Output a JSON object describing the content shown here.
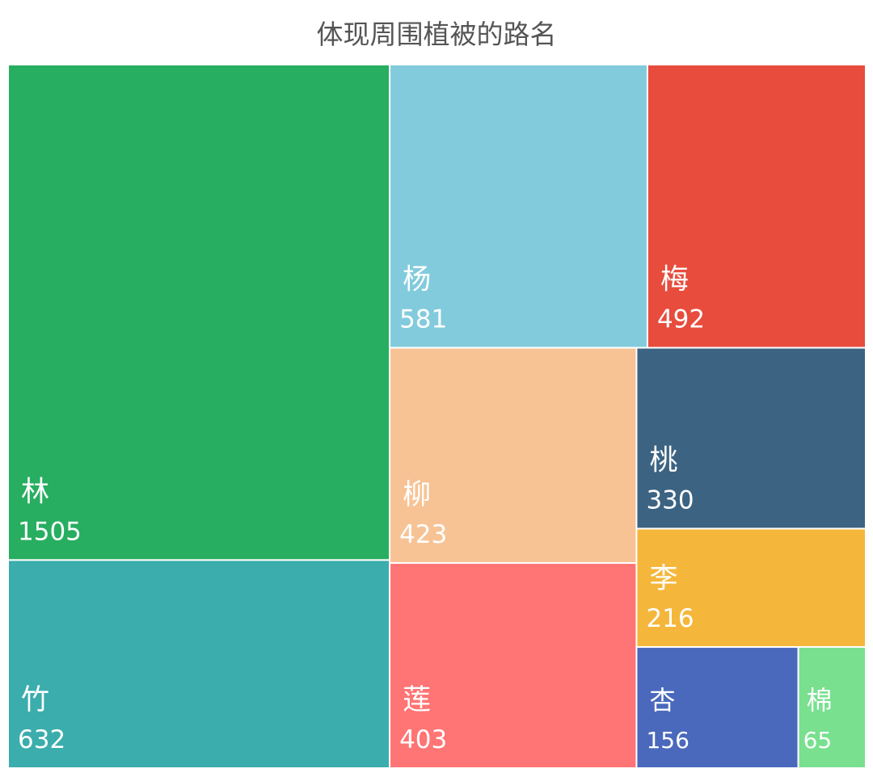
{
  "chart_data": {
    "type": "treemap",
    "title": "体现周围植被的路名",
    "items": [
      {
        "name": "林",
        "value": 1505,
        "color": "#27ae60"
      },
      {
        "name": "竹",
        "value": 632,
        "color": "#3aadac"
      },
      {
        "name": "杨",
        "value": 581,
        "color": "#82cbdc"
      },
      {
        "name": "梅",
        "value": 492,
        "color": "#e74c3d"
      },
      {
        "name": "柳",
        "value": 423,
        "color": "#f7c395"
      },
      {
        "name": "莲",
        "value": 403,
        "color": "#ff7474"
      },
      {
        "name": "桃",
        "value": 330,
        "color": "#3c6382"
      },
      {
        "name": "李",
        "value": 216,
        "color": "#f5b73b"
      },
      {
        "name": "杏",
        "value": 156,
        "color": "#4a69bd"
      },
      {
        "name": "棉",
        "value": 65,
        "color": "#78e08f"
      }
    ]
  }
}
